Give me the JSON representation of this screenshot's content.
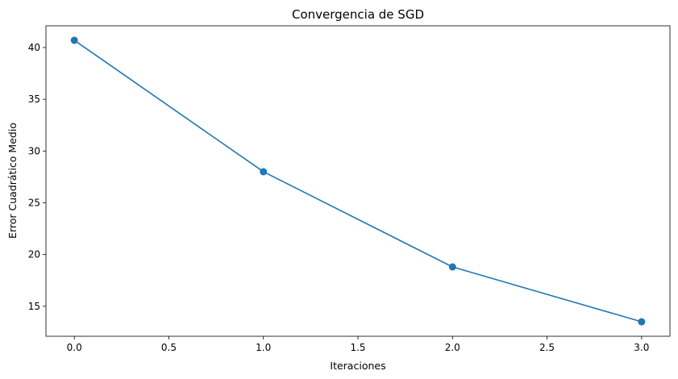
{
  "chart_data": {
    "type": "line",
    "title": "Convergencia de SGD",
    "xlabel": "Iteraciones",
    "ylabel": "Error Cuadrático Medio",
    "x": [
      0,
      1,
      2,
      3
    ],
    "series": [
      {
        "values": [
          40.7,
          28.0,
          18.8,
          13.5
        ],
        "color": "#1f77b4",
        "marker": "circle"
      }
    ],
    "xlim": [
      -0.15,
      3.15
    ],
    "ylim": [
      12.1,
      42.1
    ],
    "xticks": [
      0.0,
      0.5,
      1.0,
      1.5,
      2.0,
      2.5,
      3.0
    ],
    "xtick_labels": [
      "0.0",
      "0.5",
      "1.0",
      "1.5",
      "2.0",
      "2.5",
      "3.0"
    ],
    "yticks": [
      15,
      20,
      25,
      30,
      35,
      40
    ],
    "ytick_labels": [
      "15",
      "20",
      "25",
      "30",
      "35",
      "40"
    ],
    "grid": false,
    "legend": "none"
  }
}
